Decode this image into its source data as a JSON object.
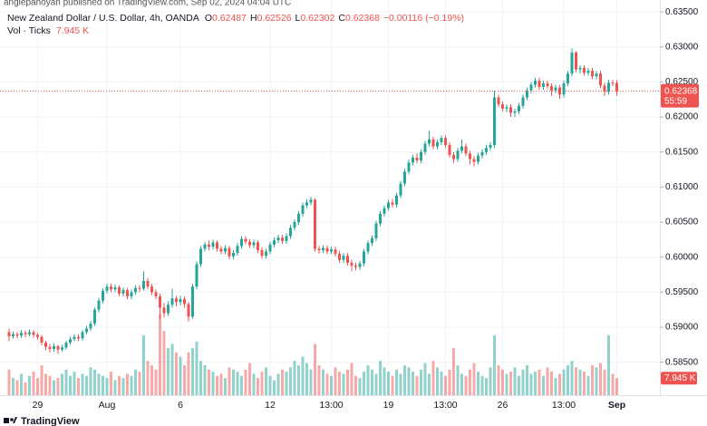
{
  "header": "anglepanoyan published on TradingView.com, Sep 02, 2024 04:04 UTC",
  "footer": "TradingView",
  "chart_data": {
    "type": "candlestick",
    "title": "New Zealand Dollar / U.S. Dollar, 4h, OANDA",
    "ohlc_labels": [
      "O",
      "H",
      "L",
      "C"
    ],
    "change": "−0.00116 (−0.19%)",
    "volume_title": "Vol · Ticks",
    "volume_last_label": "7.945 K",
    "countdown": "55:59",
    "up_color": "#26a69a",
    "down_color": "#ef5350",
    "grid": true,
    "ylim": [
      0.5803,
      0.6367
    ],
    "yticks": [
      {
        "value": 0.585,
        "label": "0.58500"
      },
      {
        "value": 0.59,
        "label": "0.59000"
      },
      {
        "value": 0.595,
        "label": "0.59500"
      },
      {
        "value": 0.6,
        "label": "0.60000"
      },
      {
        "value": 0.605,
        "label": "0.60500"
      },
      {
        "value": 0.61,
        "label": "0.61000"
      },
      {
        "value": 0.615,
        "label": "0.61500"
      },
      {
        "value": 0.62,
        "label": "0.62000"
      },
      {
        "value": 0.625,
        "label": "0.62500"
      },
      {
        "value": 0.63,
        "label": "0.63000"
      },
      {
        "value": 0.635,
        "label": "0.63500"
      }
    ],
    "categories": [
      null,
      null,
      null,
      null,
      null,
      null,
      null,
      "29",
      null,
      null,
      null,
      null,
      null,
      null,
      null,
      null,
      null,
      null,
      null,
      null,
      null,
      null,
      null,
      null,
      "Aug",
      null,
      null,
      null,
      null,
      null,
      null,
      null,
      null,
      null,
      null,
      null,
      null,
      null,
      null,
      null,
      null,
      null,
      "6",
      null,
      null,
      null,
      null,
      null,
      null,
      null,
      null,
      null,
      null,
      null,
      null,
      null,
      null,
      null,
      null,
      null,
      null,
      null,
      null,
      null,
      "12",
      null,
      null,
      null,
      null,
      null,
      null,
      null,
      null,
      null,
      null,
      null,
      null,
      null,
      null,
      "13:00",
      null,
      null,
      null,
      null,
      null,
      null,
      null,
      null,
      null,
      null,
      null,
      null,
      null,
      "19",
      null,
      null,
      null,
      null,
      null,
      null,
      null,
      null,
      null,
      null,
      null,
      null,
      null,
      "13:00",
      null,
      null,
      null,
      null,
      null,
      null,
      null,
      null,
      null,
      null,
      null,
      null,
      null,
      "26",
      null,
      null,
      null,
      null,
      null,
      null,
      null,
      null,
      null,
      null,
      null,
      null,
      null,
      null,
      "13:00",
      null,
      null,
      null,
      null,
      null,
      null,
      null,
      null,
      null,
      null,
      null,
      null,
      "Sep"
    ],
    "open": [
      0.5893,
      0.5887,
      0.589,
      0.5888,
      0.5892,
      0.589,
      0.5893,
      0.5889,
      0.5886,
      0.5878,
      0.5872,
      0.5869,
      0.5873,
      0.5868,
      0.5871,
      0.5878,
      0.5883,
      0.5886,
      0.5884,
      0.5893,
      0.5898,
      0.5905,
      0.5925,
      0.5938,
      0.5952,
      0.5958,
      0.5954,
      0.5957,
      0.5948,
      0.5953,
      0.5944,
      0.595,
      0.5956,
      0.5955,
      0.5966,
      0.5958,
      0.595,
      0.5944,
      0.5928,
      0.592,
      0.5932,
      0.5941,
      0.5936,
      0.594,
      0.5933,
      0.5915,
      0.5958,
      0.599,
      0.6012,
      0.6018,
      0.6015,
      0.6021,
      0.6012,
      0.6008,
      0.6013,
      0.6001,
      0.6006,
      0.6016,
      0.6026,
      0.6022,
      0.6017,
      0.6021,
      0.601,
      0.6002,
      0.6008,
      0.6018,
      0.6024,
      0.6028,
      0.6023,
      0.603,
      0.6042,
      0.605,
      0.6062,
      0.6074,
      0.6078,
      0.6082,
      0.6012,
      0.601,
      0.6013,
      0.6008,
      0.6011,
      0.6005,
      0.5996,
      0.6002,
      0.5992,
      0.5988,
      0.5986,
      0.5991,
      0.6008,
      0.602,
      0.6027,
      0.6048,
      0.6062,
      0.607,
      0.6078,
      0.6075,
      0.6088,
      0.6105,
      0.6122,
      0.6135,
      0.6142,
      0.6138,
      0.615,
      0.6162,
      0.6168,
      0.6158,
      0.6164,
      0.617,
      0.616,
      0.6146,
      0.614,
      0.6152,
      0.6158,
      0.6148,
      0.614,
      0.6136,
      0.6145,
      0.615,
      0.6156,
      0.616,
      0.6228,
      0.6218,
      0.6212,
      0.6214,
      0.6206,
      0.6208,
      0.6216,
      0.6228,
      0.6238,
      0.6246,
      0.6252,
      0.6243,
      0.6248,
      0.6244,
      0.6238,
      0.6242,
      0.6232,
      0.6248,
      0.6262,
      0.6292,
      0.6268,
      0.627,
      0.6263,
      0.6266,
      0.6258,
      0.6262,
      0.6245,
      0.6236,
      0.6249,
      0.62487
    ],
    "high": [
      0.5898,
      0.5894,
      0.5893,
      0.5896,
      0.5895,
      0.5897,
      0.5896,
      0.5892,
      0.5889,
      0.5881,
      0.5876,
      0.5877,
      0.5875,
      0.5875,
      0.5881,
      0.5887,
      0.589,
      0.589,
      0.5896,
      0.5902,
      0.5909,
      0.5928,
      0.5942,
      0.5956,
      0.5962,
      0.5962,
      0.5961,
      0.596,
      0.5957,
      0.5956,
      0.5954,
      0.596,
      0.596,
      0.598,
      0.597,
      0.5962,
      0.5954,
      0.5948,
      0.5935,
      0.5937,
      0.5955,
      0.5945,
      0.5945,
      0.5944,
      0.5936,
      0.5962,
      0.5994,
      0.6016,
      0.6022,
      0.6024,
      0.6025,
      0.6024,
      0.6016,
      0.6017,
      0.6016,
      0.601,
      0.602,
      0.603,
      0.603,
      0.6026,
      0.6025,
      0.6024,
      0.6014,
      0.6012,
      0.6022,
      0.6028,
      0.6032,
      0.6032,
      0.6034,
      0.6046,
      0.6054,
      0.6066,
      0.6078,
      0.6083,
      0.6086,
      0.6084,
      0.6016,
      0.6017,
      0.6017,
      0.6015,
      0.6015,
      0.6009,
      0.6006,
      0.6006,
      0.5996,
      0.5992,
      0.5995,
      0.6012,
      0.6024,
      0.6031,
      0.6052,
      0.6066,
      0.6074,
      0.6082,
      0.6083,
      0.6092,
      0.6109,
      0.6126,
      0.6139,
      0.6146,
      0.6148,
      0.6154,
      0.6166,
      0.618,
      0.6172,
      0.6168,
      0.6174,
      0.6174,
      0.6164,
      0.615,
      0.6156,
      0.6168,
      0.6162,
      0.6152,
      0.6144,
      0.6149,
      0.6154,
      0.616,
      0.6164,
      0.6238,
      0.6232,
      0.6222,
      0.6218,
      0.6218,
      0.6212,
      0.622,
      0.6232,
      0.6242,
      0.625,
      0.6256,
      0.6256,
      0.6252,
      0.6252,
      0.6248,
      0.6246,
      0.6246,
      0.6252,
      0.6266,
      0.6298,
      0.6294,
      0.6274,
      0.6274,
      0.627,
      0.627,
      0.6266,
      0.6266,
      0.6249,
      0.6253,
      0.6253,
      0.62526
    ],
    "low": [
      0.588,
      0.5884,
      0.5884,
      0.5885,
      0.5886,
      0.5887,
      0.5885,
      0.5882,
      0.5874,
      0.5867,
      0.5864,
      0.5865,
      0.5862,
      0.5865,
      0.5868,
      0.5875,
      0.588,
      0.588,
      0.5881,
      0.589,
      0.5895,
      0.5902,
      0.5921,
      0.5934,
      0.5948,
      0.595,
      0.595,
      0.5944,
      0.5944,
      0.594,
      0.594,
      0.5946,
      0.595,
      0.5952,
      0.5954,
      0.5946,
      0.594,
      0.5912,
      0.5914,
      0.5916,
      0.5928,
      0.593,
      0.5931,
      0.5928,
      0.5908,
      0.5912,
      0.5954,
      0.5986,
      0.6008,
      0.601,
      0.6011,
      0.6008,
      0.6004,
      0.6004,
      0.5997,
      0.5997,
      0.6002,
      0.6012,
      0.6018,
      0.6013,
      0.6013,
      0.6006,
      0.5998,
      0.5998,
      0.6004,
      0.6014,
      0.602,
      0.6019,
      0.6019,
      0.6026,
      0.6038,
      0.6046,
      0.6058,
      0.607,
      0.6074,
      0.6008,
      0.6005,
      0.6006,
      0.6004,
      0.6004,
      0.6001,
      0.5992,
      0.5992,
      0.5988,
      0.598,
      0.5981,
      0.5982,
      0.5987,
      0.6004,
      0.6016,
      0.6023,
      0.6044,
      0.6058,
      0.6066,
      0.6071,
      0.6071,
      0.6084,
      0.6101,
      0.6118,
      0.6131,
      0.6134,
      0.6134,
      0.6146,
      0.6158,
      0.6154,
      0.6154,
      0.616,
      0.6156,
      0.6142,
      0.6134,
      0.6136,
      0.6148,
      0.6144,
      0.6132,
      0.613,
      0.6132,
      0.6141,
      0.6146,
      0.6152,
      0.6156,
      0.6214,
      0.6208,
      0.6207,
      0.62,
      0.62,
      0.6204,
      0.6212,
      0.6224,
      0.6234,
      0.6242,
      0.6239,
      0.6239,
      0.624,
      0.623,
      0.6234,
      0.6226,
      0.6228,
      0.6244,
      0.6258,
      0.6264,
      0.6262,
      0.6259,
      0.6259,
      0.6254,
      0.6254,
      0.6241,
      0.623,
      0.6232,
      0.6244,
      0.62302
    ],
    "close": [
      0.5887,
      0.589,
      0.5888,
      0.5892,
      0.589,
      0.5893,
      0.5889,
      0.5886,
      0.5878,
      0.5872,
      0.5869,
      0.5873,
      0.5868,
      0.5871,
      0.5878,
      0.5883,
      0.5886,
      0.5884,
      0.5893,
      0.5898,
      0.5905,
      0.5925,
      0.5938,
      0.5952,
      0.5958,
      0.5954,
      0.5957,
      0.5948,
      0.5953,
      0.5944,
      0.595,
      0.5956,
      0.5955,
      0.5966,
      0.5958,
      0.595,
      0.5944,
      0.5928,
      0.592,
      0.5932,
      0.5941,
      0.5936,
      0.594,
      0.5933,
      0.5915,
      0.5958,
      0.599,
      0.6012,
      0.6018,
      0.6015,
      0.6021,
      0.6012,
      0.6008,
      0.6013,
      0.6001,
      0.6006,
      0.6016,
      0.6026,
      0.6022,
      0.6017,
      0.6021,
      0.601,
      0.6002,
      0.6008,
      0.6018,
      0.6024,
      0.6028,
      0.6023,
      0.603,
      0.6042,
      0.605,
      0.6062,
      0.6074,
      0.6078,
      0.6082,
      0.6012,
      0.601,
      0.6013,
      0.6008,
      0.6011,
      0.6005,
      0.5996,
      0.6002,
      0.5992,
      0.5988,
      0.5986,
      0.5991,
      0.6008,
      0.602,
      0.6027,
      0.6048,
      0.6062,
      0.607,
      0.6078,
      0.6075,
      0.6088,
      0.6105,
      0.6122,
      0.6135,
      0.6142,
      0.6138,
      0.615,
      0.6162,
      0.6168,
      0.6158,
      0.6164,
      0.617,
      0.616,
      0.6146,
      0.614,
      0.6152,
      0.6158,
      0.6148,
      0.614,
      0.6136,
      0.6145,
      0.615,
      0.6156,
      0.616,
      0.6228,
      0.6218,
      0.6212,
      0.6214,
      0.6206,
      0.6208,
      0.6216,
      0.6228,
      0.6238,
      0.6246,
      0.6252,
      0.6243,
      0.6248,
      0.6244,
      0.6238,
      0.6242,
      0.6232,
      0.6248,
      0.6262,
      0.6292,
      0.6268,
      0.627,
      0.6263,
      0.6266,
      0.6258,
      0.6262,
      0.6245,
      0.6236,
      0.6249,
      0.62487,
      0.62368
    ],
    "volume": [
      12,
      8,
      7,
      10,
      6,
      9,
      11,
      8,
      14,
      10,
      9,
      7,
      8,
      10,
      12,
      9,
      11,
      8,
      10,
      9,
      13,
      12,
      10,
      9,
      8,
      11,
      7,
      9,
      8,
      10,
      9,
      12,
      11,
      28,
      16,
      14,
      12,
      38,
      30,
      22,
      24,
      20,
      18,
      14,
      20,
      22,
      25,
      16,
      14,
      12,
      11,
      9,
      10,
      8,
      13,
      12,
      11,
      9,
      12,
      15,
      10,
      8,
      11,
      13,
      9,
      7,
      10,
      12,
      11,
      13,
      16,
      14,
      18,
      15,
      12,
      24,
      14,
      12,
      10,
      9,
      13,
      11,
      10,
      12,
      15,
      9,
      8,
      11,
      14,
      12,
      10,
      16,
      13,
      11,
      9,
      12,
      10,
      14,
      13,
      11,
      9,
      12,
      15,
      10,
      16,
      13,
      11,
      9,
      12,
      22,
      14,
      10,
      9,
      12,
      15,
      11,
      9,
      8,
      13,
      28,
      14,
      12,
      10,
      11,
      13,
      9,
      12,
      14,
      10,
      11,
      12,
      9,
      13,
      11,
      8,
      10,
      12,
      14,
      16,
      13,
      12,
      11,
      9,
      14,
      13,
      15,
      12,
      28,
      10,
      7.945
    ]
  }
}
